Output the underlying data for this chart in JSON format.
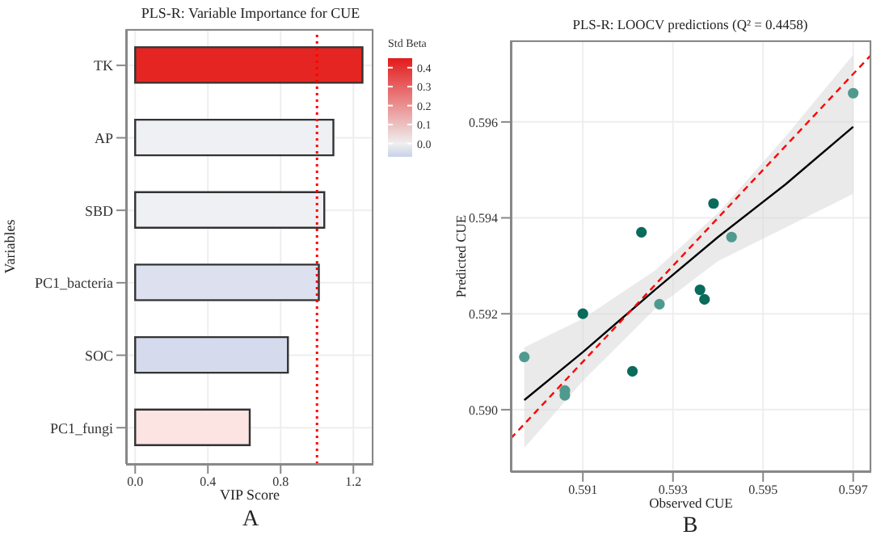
{
  "chart_data": [
    {
      "type": "bar",
      "orientation": "horizontal",
      "title": "PLS-R: Variable Importance for CUE",
      "xlabel": "VIP Score",
      "ylabel": "Variables",
      "categories": [
        "TK",
        "AP",
        "SBD",
        "PC1_bacteria",
        "SOC",
        "PC1_fungi"
      ],
      "values": [
        1.25,
        1.09,
        1.04,
        1.01,
        0.84,
        0.63
      ],
      "colors": [
        "#e52521",
        "#eef0f3",
        "#eef0f3",
        "#dde1ef",
        "#d5daec",
        "#fbe4e2"
      ],
      "xlim": [
        -0.05,
        1.31
      ],
      "xticks": [
        {
          "value": 0,
          "label": "0.0"
        },
        0.4,
        0.8,
        1.2
      ],
      "grid": true,
      "ref_lines": [
        {
          "axis": "x",
          "value": 1,
          "color": "#ff0000",
          "line_style": "dotted"
        }
      ],
      "clabel": "Std Beta",
      "clim": [
        -0.07,
        0.45
      ],
      "cticks": [
        {
          "value": 0,
          "label": "0.0"
        },
        0.1,
        0.2,
        0.3,
        0.4
      ],
      "annotations": [
        "A"
      ]
    },
    {
      "type": "scatter",
      "title": "PLS-R: LOOCV predictions (Q² = 0.4458)",
      "xlabel": "Observed CUE",
      "ylabel": "Predicted CUE",
      "series": [
        {
          "type": "scatter",
          "x": [
            0.5897,
            0.5906,
            0.5906,
            0.591,
            0.5921,
            0.5923,
            0.5927,
            0.5936,
            0.5937,
            0.5939,
            0.5943,
            0.597
          ],
          "values": [
            0.5911,
            0.5904,
            0.5903,
            0.592,
            0.5908,
            0.5937,
            0.5922,
            0.5925,
            0.5923,
            0.5943,
            0.5936,
            0.5966
          ],
          "colors": [
            "#4f9a8e",
            "#4f9a8e",
            "#4f9a8e",
            "#086b5c",
            "#086b5c",
            "#086b5c",
            "#4f9a8e",
            "#086b5c",
            "#086b5c",
            "#086b5c",
            "#4f9a8e",
            "#4f9a8e"
          ]
        },
        {
          "type": "line",
          "color": "#000000",
          "x": [
            0.5897,
            0.591,
            0.5926,
            0.594,
            0.5955,
            0.597
          ],
          "values": [
            0.5902,
            0.5912,
            0.5925,
            0.5936,
            0.5947,
            0.5959
          ],
          "lower": [
            0.5892,
            0.5906,
            0.5921,
            0.5931,
            0.5938,
            0.5945
          ],
          "upper": [
            0.5913,
            0.5919,
            0.5929,
            0.5941,
            0.5957,
            0.5974
          ]
        },
        {
          "type": "line",
          "color": "#ff0000",
          "line_style": "dashed",
          "x": [
            0.5894,
            0.5974
          ],
          "values": [
            0.5894,
            0.5974
          ]
        }
      ],
      "xlim": [
        0.5894,
        0.5974
      ],
      "ylim": [
        0.5887,
        0.5977
      ],
      "xticks": [
        0.591,
        0.593,
        0.595,
        0.597
      ],
      "yticks": [
        {
          "value": 0.59,
          "label": "0.590"
        },
        0.592,
        0.594,
        0.596
      ],
      "grid": true,
      "annotations": [
        "B"
      ]
    }
  ]
}
